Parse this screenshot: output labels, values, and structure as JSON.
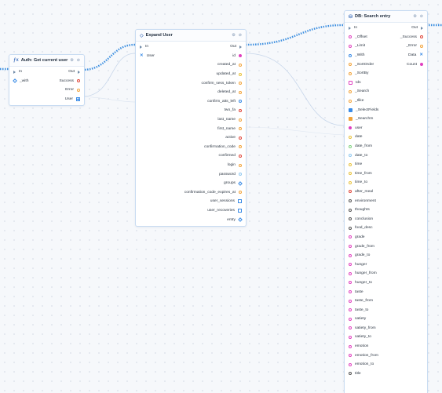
{
  "colors": {
    "orange": "#f2a33a",
    "yellow": "#e8c23a",
    "red": "#e0473b",
    "green": "#7fd27f",
    "blue": "#3a8be6",
    "purple": "#a855c9",
    "magenta": "#e040c0",
    "gray": "#8a8a8a",
    "lightblue": "#8fc8f0",
    "pink": "#f07ab0",
    "dark": "#555555",
    "wire": "#3d8fe0"
  },
  "nodes": {
    "auth": {
      "title": "Auth: Get current user",
      "rows": [
        {
          "left": "In",
          "right": "Out"
        },
        {
          "left": "_with",
          "right": "Success"
        },
        {
          "left": "",
          "right": "Error"
        },
        {
          "left": "",
          "right": "User"
        }
      ]
    },
    "expand": {
      "title": "Expand User",
      "rows": [
        {
          "left": "In",
          "right": "Out"
        },
        {
          "left": "User",
          "right": "id"
        },
        {
          "left": "",
          "right": "created_at"
        },
        {
          "left": "",
          "right": "updated_at"
        },
        {
          "left": "",
          "right": "confirm_sess_token"
        },
        {
          "left": "",
          "right": "deleted_at"
        },
        {
          "left": "",
          "right": "confirm_atts_left"
        },
        {
          "left": "",
          "right": "two_fa"
        },
        {
          "left": "",
          "right": "last_name"
        },
        {
          "left": "",
          "right": "first_name"
        },
        {
          "left": "",
          "right": "active"
        },
        {
          "left": "",
          "right": "confirmation_code"
        },
        {
          "left": "",
          "right": "confirmed"
        },
        {
          "left": "",
          "right": "login"
        },
        {
          "left": "",
          "right": "password"
        },
        {
          "left": "",
          "right": "groups"
        },
        {
          "left": "",
          "right": "confirmation_code_expires_at"
        },
        {
          "left": "",
          "right": "user_sessions"
        },
        {
          "left": "",
          "right": "user_recoveries"
        },
        {
          "left": "",
          "right": "entry"
        }
      ]
    },
    "search": {
      "title": "DB: Search entry",
      "rows": [
        {
          "left": "In",
          "right": "Out"
        },
        {
          "left": "_Offset",
          "right": "_Success"
        },
        {
          "left": "_Limit",
          "right": "_Error"
        },
        {
          "left": "_With",
          "right": "Data"
        },
        {
          "left": "_SortOrder",
          "right": "Count"
        },
        {
          "left": "_SortBy",
          "right": ""
        },
        {
          "left": "Ids",
          "right": ""
        },
        {
          "left": "_Search",
          "right": ""
        },
        {
          "left": "_Ilike",
          "right": ""
        },
        {
          "left": "_SelectFields",
          "right": ""
        },
        {
          "left": "_SearchIn",
          "right": ""
        },
        {
          "left": "user",
          "right": ""
        },
        {
          "left": "date",
          "right": ""
        },
        {
          "left": "date_from",
          "right": ""
        },
        {
          "left": "date_to",
          "right": ""
        },
        {
          "left": "time",
          "right": ""
        },
        {
          "left": "time_from",
          "right": ""
        },
        {
          "left": "time_to",
          "right": ""
        },
        {
          "left": "after_meal",
          "right": ""
        },
        {
          "left": "environment",
          "right": ""
        },
        {
          "left": "thoughts",
          "right": ""
        },
        {
          "left": "conclusion",
          "right": ""
        },
        {
          "left": "food_desc",
          "right": ""
        },
        {
          "left": "grade",
          "right": ""
        },
        {
          "left": "grade_from",
          "right": ""
        },
        {
          "left": "grade_to",
          "right": ""
        },
        {
          "left": "hunger",
          "right": ""
        },
        {
          "left": "hunger_from",
          "right": ""
        },
        {
          "left": "hunger_to",
          "right": ""
        },
        {
          "left": "taste",
          "right": ""
        },
        {
          "left": "taste_from",
          "right": ""
        },
        {
          "left": "taste_to",
          "right": ""
        },
        {
          "left": "satiety",
          "right": ""
        },
        {
          "left": "satiety_from",
          "right": ""
        },
        {
          "left": "satiety_to",
          "right": ""
        },
        {
          "left": "emotion",
          "right": ""
        },
        {
          "left": "emotion_from",
          "right": ""
        },
        {
          "left": "emotion_to",
          "right": ""
        },
        {
          "left": "title",
          "right": ""
        }
      ]
    }
  },
  "icons": {
    "header_tools": [
      "gear-icon",
      "close-icon"
    ],
    "auth_header": "function-icon",
    "expand_header": "expand-icon",
    "search_header": "database-icon"
  }
}
